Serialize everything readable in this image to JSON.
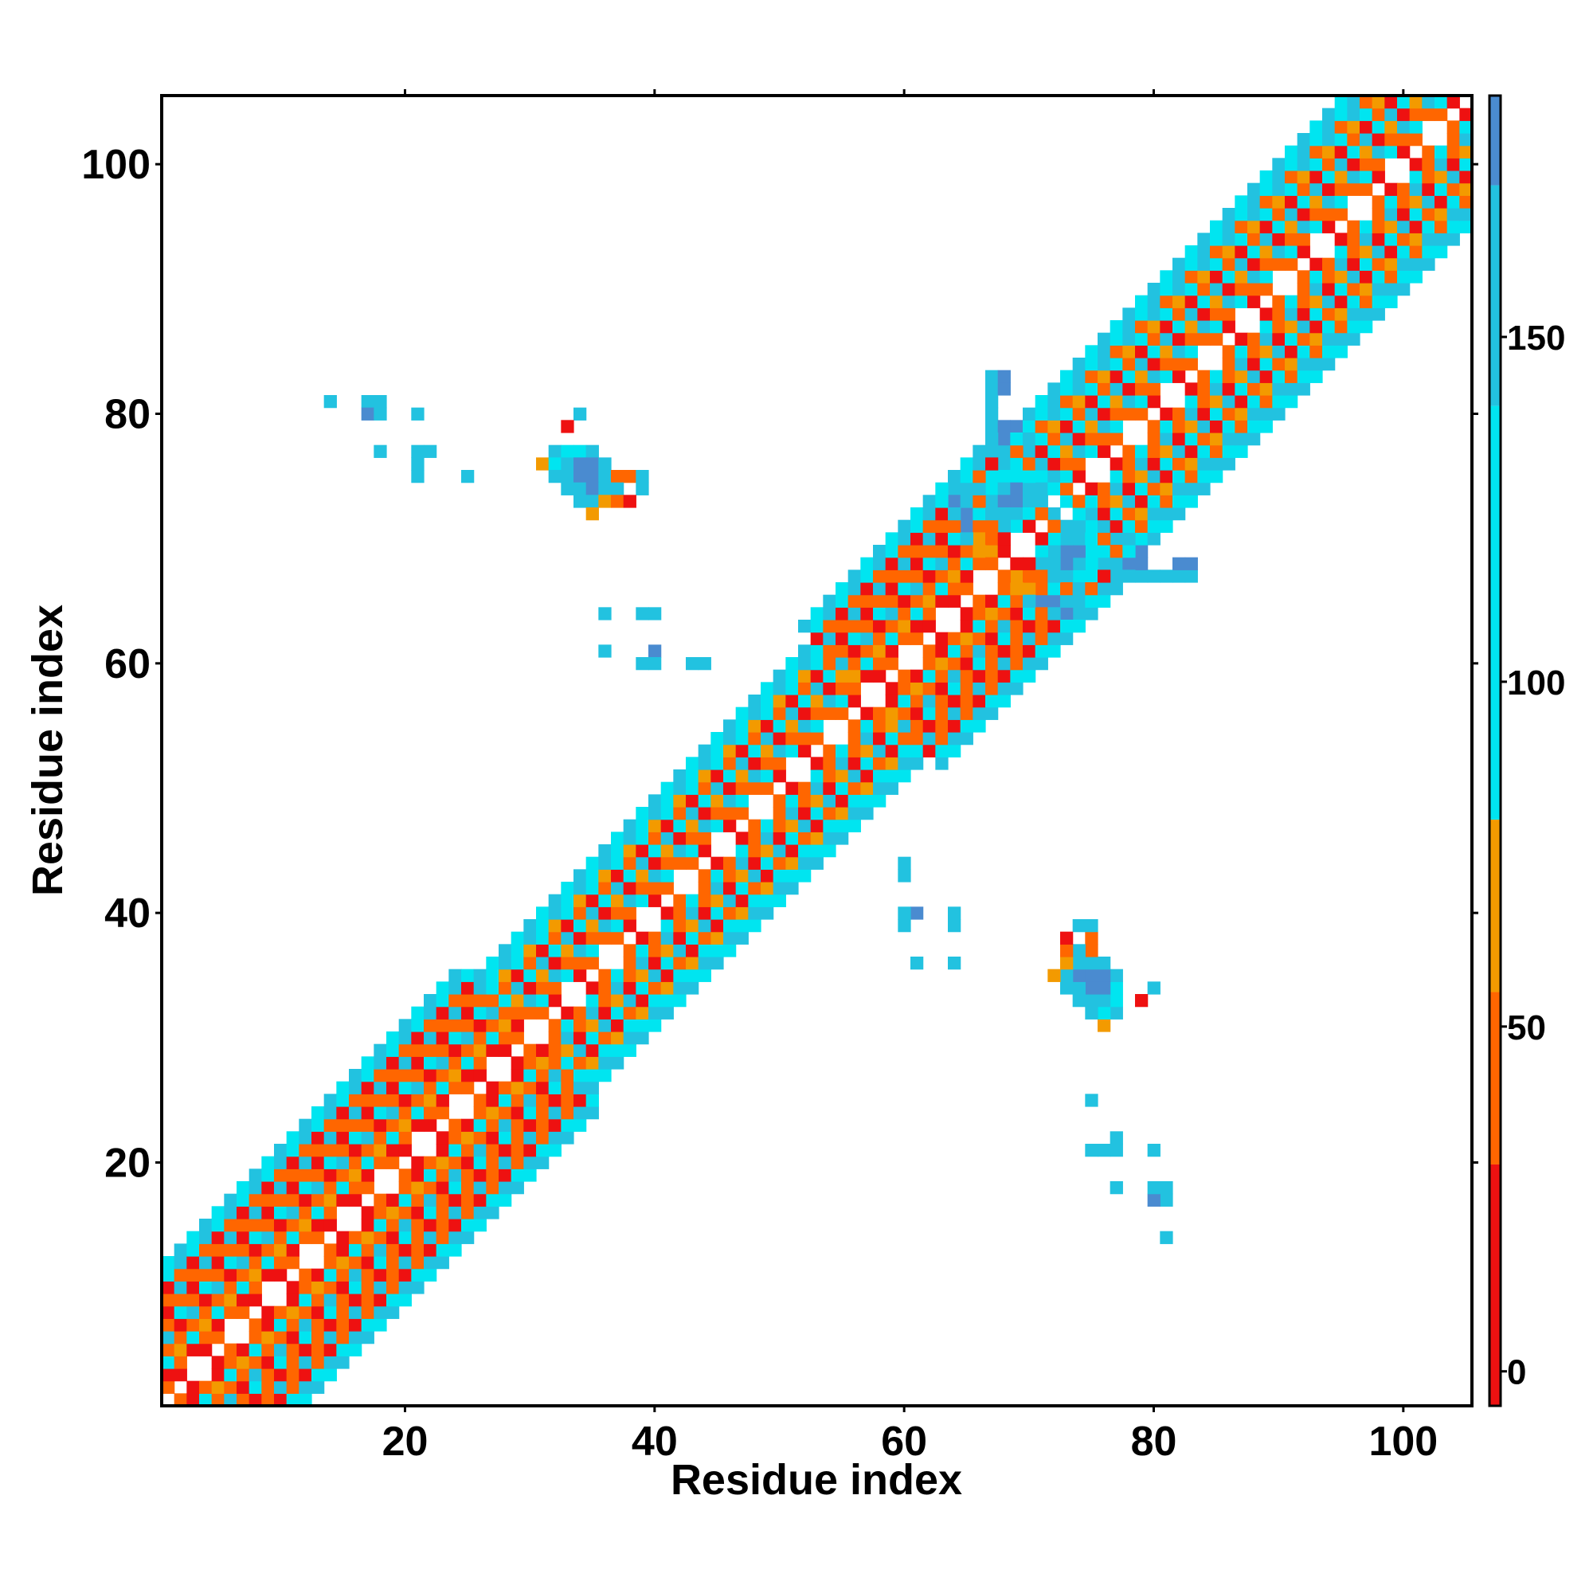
{
  "chart_data": {
    "type": "heatmap",
    "subtype": "residue contact map",
    "xlabel": "Residue index",
    "ylabel": "Residue index",
    "xlim": [
      1,
      105
    ],
    "ylim": [
      1,
      105
    ],
    "xticks": [
      20,
      40,
      60,
      80,
      100
    ],
    "yticks": [
      20,
      40,
      60,
      80,
      100
    ],
    "xtick_labels": [
      "20",
      "40",
      "60",
      "80",
      "100"
    ],
    "ytick_labels": [
      "20",
      "40",
      "60",
      "80",
      "100"
    ],
    "symmetric": true,
    "diagonal_empty": true,
    "colorbar": {
      "range": [
        -5,
        185
      ],
      "ticks": [
        0,
        50,
        100,
        150
      ],
      "tick_labels": [
        "0",
        "50",
        "100",
        "150"
      ],
      "segments": [
        {
          "from": -5,
          "to": 30,
          "color": "#ee1111"
        },
        {
          "from": 30,
          "to": 55,
          "color": "#ff6600"
        },
        {
          "from": 55,
          "to": 80,
          "color": "#f39a00"
        },
        {
          "from": 80,
          "to": 140,
          "color": "#00e5f0"
        },
        {
          "from": 140,
          "to": 172,
          "color": "#22c2e0"
        },
        {
          "from": 172,
          "to": 185,
          "color": "#4a8bd0"
        }
      ]
    },
    "band_segments": [
      {
        "from": 1,
        "to": 30,
        "width": 11,
        "palette": "orange-red"
      },
      {
        "from": 30,
        "to": 57,
        "width": 9,
        "palette": "orange-cyan"
      },
      {
        "from": 57,
        "to": 72,
        "width": 11,
        "palette": "orange-red"
      },
      {
        "from": 72,
        "to": 105,
        "width": 10,
        "palette": "orange-cyan"
      }
    ],
    "off_diagonal_contacts": [
      [
        14,
        81,
        "#22c2e0"
      ],
      [
        17,
        81,
        "#22c2e0"
      ],
      [
        18,
        81,
        "#22c2e0"
      ],
      [
        17,
        80,
        "#4a8bd0"
      ],
      [
        18,
        80,
        "#22c2e0"
      ],
      [
        21,
        80,
        "#22c2e0"
      ],
      [
        18,
        77,
        "#22c2e0"
      ],
      [
        21,
        77,
        "#22c2e0"
      ],
      [
        22,
        77,
        "#22c2e0"
      ],
      [
        21,
        76,
        "#22c2e0"
      ],
      [
        21,
        75,
        "#22c2e0"
      ],
      [
        25,
        75,
        "#22c2e0"
      ],
      [
        34,
        80,
        "#22c2e0"
      ],
      [
        33,
        79,
        "#ee1111"
      ],
      [
        32,
        77,
        "#22c2e0"
      ],
      [
        33,
        77,
        "#00e5f0"
      ],
      [
        34,
        77,
        "#00e5f0"
      ],
      [
        35,
        77,
        "#22c2e0"
      ],
      [
        31,
        76,
        "#f39a00"
      ],
      [
        32,
        76,
        "#00e5f0"
      ],
      [
        33,
        76,
        "#22c2e0"
      ],
      [
        34,
        76,
        "#4a8bd0"
      ],
      [
        35,
        76,
        "#4a8bd0"
      ],
      [
        36,
        76,
        "#22c2e0"
      ],
      [
        32,
        75,
        "#22c2e0"
      ],
      [
        33,
        75,
        "#22c2e0"
      ],
      [
        34,
        75,
        "#4a8bd0"
      ],
      [
        35,
        75,
        "#4a8bd0"
      ],
      [
        36,
        75,
        "#22c2e0"
      ],
      [
        37,
        75,
        "#ff6600"
      ],
      [
        38,
        75,
        "#ff6600"
      ],
      [
        39,
        75,
        "#22c2e0"
      ],
      [
        33,
        74,
        "#22c2e0"
      ],
      [
        34,
        74,
        "#22c2e0"
      ],
      [
        35,
        74,
        "#4a8bd0"
      ],
      [
        36,
        74,
        "#22c2e0"
      ],
      [
        37,
        74,
        "#22c2e0"
      ],
      [
        39,
        74,
        "#22c2e0"
      ],
      [
        34,
        73,
        "#22c2e0"
      ],
      [
        35,
        73,
        "#22c2e0"
      ],
      [
        36,
        73,
        "#f39a00"
      ],
      [
        37,
        73,
        "#ff6600"
      ],
      [
        38,
        73,
        "#ee1111"
      ],
      [
        35,
        72,
        "#f39a00"
      ],
      [
        36,
        64,
        "#22c2e0"
      ],
      [
        39,
        64,
        "#22c2e0"
      ],
      [
        40,
        64,
        "#22c2e0"
      ],
      [
        36,
        61,
        "#22c2e0"
      ],
      [
        40,
        61,
        "#4a8bd0"
      ],
      [
        39,
        60,
        "#22c2e0"
      ],
      [
        40,
        60,
        "#22c2e0"
      ],
      [
        43,
        60,
        "#22c2e0"
      ],
      [
        44,
        60,
        "#22c2e0"
      ],
      [
        64,
        75,
        "#22c2e0"
      ],
      [
        64,
        74,
        "#22c2e0"
      ],
      [
        64,
        73,
        "#4a8bd0"
      ],
      [
        65,
        72,
        "#4a8bd0"
      ],
      [
        65,
        71,
        "#4a8bd0"
      ],
      [
        67,
        83,
        "#22c2e0"
      ],
      [
        68,
        83,
        "#4a8bd0"
      ],
      [
        67,
        82,
        "#22c2e0"
      ],
      [
        67,
        80,
        "#22c2e0"
      ],
      [
        67,
        79,
        "#22c2e0"
      ],
      [
        68,
        79,
        "#4a8bd0"
      ],
      [
        69,
        79,
        "#4a8bd0"
      ],
      [
        70,
        79,
        "#00e5f0"
      ],
      [
        68,
        76,
        "#22c2e0"
      ],
      [
        67,
        75,
        "#00e5f0"
      ],
      [
        68,
        75,
        "#00e5f0"
      ],
      [
        69,
        75,
        "#00e5f0"
      ],
      [
        71,
        75,
        "#00e5f0"
      ],
      [
        72,
        75,
        "#22c2e0"
      ],
      [
        67,
        74,
        "#00e5f0"
      ],
      [
        68,
        74,
        "#22c2e0"
      ],
      [
        69,
        74,
        "#4a8bd0"
      ],
      [
        70,
        74,
        "#22c2e0"
      ],
      [
        71,
        74,
        "#22c2e0"
      ],
      [
        72,
        74,
        "#00e5f0"
      ],
      [
        67,
        73,
        "#22c2e0"
      ],
      [
        68,
        73,
        "#4a8bd0"
      ],
      [
        69,
        73,
        "#4a8bd0"
      ],
      [
        70,
        73,
        "#22c2e0"
      ],
      [
        71,
        73,
        "#22c2e0"
      ],
      [
        73,
        73,
        "#00e5f0"
      ],
      [
        68,
        72,
        "#22c2e0"
      ],
      [
        69,
        72,
        "#22c2e0"
      ],
      [
        70,
        72,
        "#00e5f0"
      ],
      [
        72,
        72,
        "#22c2e0"
      ],
      [
        69,
        71,
        "#00e5f0"
      ],
      [
        73,
        71,
        "#4a8bd0"
      ],
      [
        74,
        71,
        "#00e5f0"
      ],
      [
        72,
        70,
        "#22c2e0"
      ],
      [
        73,
        70,
        "#4a8bd0"
      ],
      [
        74,
        70,
        "#22c2e0"
      ],
      [
        75,
        70,
        "#00e5f0"
      ],
      [
        72,
        69,
        "#22c2e0"
      ],
      [
        73,
        69,
        "#4a8bd0"
      ],
      [
        74,
        69,
        "#4a8bd0"
      ],
      [
        75,
        69,
        "#00e5f0"
      ],
      [
        76,
        69,
        "#00e5f0"
      ],
      [
        71,
        68,
        "#22c2e0"
      ],
      [
        72,
        68,
        "#22c2e0"
      ],
      [
        73,
        68,
        "#22c2e0"
      ],
      [
        74,
        68,
        "#4a8bd0"
      ],
      [
        75,
        68,
        "#22c2e0"
      ],
      [
        77,
        68,
        "#22c2e0"
      ],
      [
        78,
        68,
        "#4a8bd0"
      ],
      [
        82,
        68,
        "#4a8bd0"
      ],
      [
        74,
        67,
        "#22c2e0"
      ],
      [
        75,
        67,
        "#22c2e0"
      ],
      [
        77,
        67,
        "#22c2e0"
      ],
      [
        78,
        67,
        "#22c2e0"
      ],
      [
        81,
        67,
        "#22c2e0"
      ],
      [
        82,
        67,
        "#22c2e0"
      ],
      [
        77,
        70,
        "#22c2e0"
      ],
      [
        71,
        65,
        "#22c2e0"
      ],
      [
        72,
        65,
        "#22c2e0"
      ],
      [
        73,
        65,
        "#22c2e0"
      ],
      [
        74,
        65,
        "#22c2e0"
      ],
      [
        73,
        64,
        "#4a8bd0"
      ],
      [
        74,
        64,
        "#4a8bd0"
      ],
      [
        75,
        64,
        "#22c2e0"
      ],
      [
        71,
        66,
        "#ff6600"
      ],
      [
        70,
        66,
        "#f39a00"
      ],
      [
        69,
        67,
        "#f39a00"
      ],
      [
        70,
        67,
        "#ff6600"
      ],
      [
        68,
        69,
        "#ee1111"
      ],
      [
        70,
        68,
        "#ee1111"
      ]
    ]
  }
}
